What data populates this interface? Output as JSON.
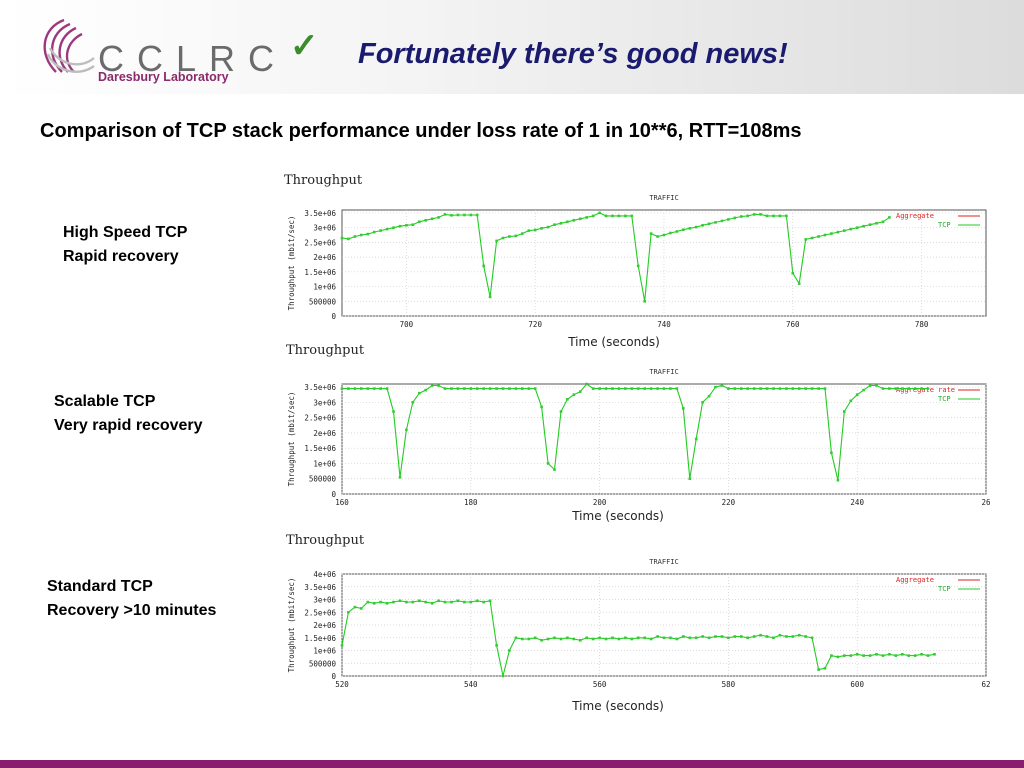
{
  "header": {
    "logo_text": "CCLRC",
    "logo_subtitle": "Daresbury Laboratory",
    "check_icon": "checkmark-icon",
    "title": "Fortunately there’s good news!"
  },
  "subtitle": "Comparison of TCP stack performance under loss rate of 1 in 10**6, RTT=108ms",
  "colors": {
    "series": "#22cc22",
    "aggregate": "#dd2222",
    "footer": "#8a1e6e",
    "title": "#1a1a6e"
  },
  "chart_data": [
    {
      "type": "line",
      "side_label": [
        "High Speed TCP",
        "Rapid recovery"
      ],
      "heading": "Throughput",
      "title": "TRAFFIC",
      "xlabel": "Time (seconds)",
      "ylabel": "Throughput (mbit/sec)",
      "xlim": [
        690,
        790
      ],
      "ylim": [
        0,
        3600000
      ],
      "xticks": [
        "700",
        "720",
        "740",
        "760",
        "780"
      ],
      "yticks": [
        "0",
        "500000",
        "1e+06",
        "1.5e+06",
        "2e+06",
        "2.5e+06",
        "3e+06",
        "3.5e+06"
      ],
      "legend": [
        "Aggregate",
        "TCP"
      ],
      "series": [
        {
          "name": "TCP",
          "x": [
            690,
            691,
            692,
            693,
            694,
            695,
            696,
            697,
            698,
            699,
            700,
            701,
            702,
            703,
            704,
            705,
            706,
            707,
            708,
            709,
            710,
            711,
            712,
            713,
            714,
            715,
            716,
            717,
            718,
            719,
            720,
            721,
            722,
            723,
            724,
            725,
            726,
            727,
            728,
            729,
            730,
            731,
            732,
            733,
            734,
            735,
            736,
            737,
            738,
            739,
            740,
            741,
            742,
            743,
            744,
            745,
            746,
            747,
            748,
            749,
            750,
            751,
            752,
            753,
            754,
            755,
            756,
            757,
            758,
            759,
            760,
            761,
            762,
            763,
            764,
            765,
            766,
            767,
            768,
            769,
            770,
            771,
            772,
            773,
            774,
            775
          ],
          "y": [
            2650000,
            2620000,
            2700000,
            2750000,
            2780000,
            2850000,
            2900000,
            2950000,
            3000000,
            3050000,
            3080000,
            3100000,
            3200000,
            3250000,
            3300000,
            3350000,
            3450000,
            3420000,
            3430000,
            3430000,
            3430000,
            3430000,
            1700000,
            650000,
            2550000,
            2650000,
            2700000,
            2720000,
            2800000,
            2900000,
            2920000,
            2980000,
            3020000,
            3100000,
            3150000,
            3200000,
            3250000,
            3300000,
            3350000,
            3400000,
            3500000,
            3400000,
            3400000,
            3400000,
            3400000,
            3400000,
            1700000,
            500000,
            2800000,
            2700000,
            2750000,
            2820000,
            2870000,
            2930000,
            2980000,
            3020000,
            3080000,
            3130000,
            3180000,
            3230000,
            3280000,
            3330000,
            3380000,
            3400000,
            3450000,
            3450000,
            3400000,
            3400000,
            3400000,
            3400000,
            1450000,
            1100000,
            2600000,
            2650000,
            2700000,
            2750000,
            2800000,
            2850000,
            2900000,
            2950000,
            3000000,
            3050000,
            3100000,
            3150000,
            3200000,
            3350000
          ]
        }
      ]
    },
    {
      "type": "line",
      "side_label": [
        "Scalable TCP",
        "Very rapid recovery"
      ],
      "heading": "Throughput",
      "title": "TRAFFIC",
      "xlabel": "Time (seconds)",
      "ylabel": "Throughput (mbit/sec)",
      "xlim": [
        160,
        260
      ],
      "ylim": [
        0,
        3600000
      ],
      "xticks": [
        "160",
        "180",
        "200",
        "220",
        "240",
        "26"
      ],
      "yticks": [
        "0",
        "500000",
        "1e+06",
        "1.5e+06",
        "2e+06",
        "2.5e+06",
        "3e+06",
        "3.5e+06"
      ],
      "legend": [
        "Aggregate rate",
        "TCP"
      ],
      "series": [
        {
          "name": "TCP",
          "x": [
            160,
            161,
            162,
            163,
            164,
            165,
            166,
            167,
            168,
            169,
            170,
            171,
            172,
            173,
            174,
            175,
            176,
            177,
            178,
            179,
            180,
            181,
            182,
            183,
            184,
            185,
            186,
            187,
            188,
            189,
            190,
            191,
            192,
            193,
            194,
            195,
            196,
            197,
            198,
            199,
            200,
            201,
            202,
            203,
            204,
            205,
            206,
            207,
            208,
            209,
            210,
            211,
            212,
            213,
            214,
            215,
            216,
            217,
            218,
            219,
            220,
            221,
            222,
            223,
            224,
            225,
            226,
            227,
            228,
            229,
            230,
            231,
            232,
            233,
            234,
            235,
            236,
            237,
            238,
            239,
            240,
            241,
            242,
            243,
            244,
            245,
            246,
            247,
            248,
            249,
            250,
            251
          ],
          "y": [
            3450000,
            3450000,
            3450000,
            3450000,
            3450000,
            3450000,
            3450000,
            3450000,
            2700000,
            550000,
            2100000,
            3000000,
            3300000,
            3400000,
            3550000,
            3550000,
            3450000,
            3450000,
            3450000,
            3450000,
            3450000,
            3450000,
            3450000,
            3450000,
            3450000,
            3450000,
            3450000,
            3450000,
            3450000,
            3450000,
            3450000,
            2850000,
            1000000,
            800000,
            2700000,
            3100000,
            3250000,
            3350000,
            3600000,
            3450000,
            3450000,
            3450000,
            3450000,
            3450000,
            3450000,
            3450000,
            3450000,
            3450000,
            3450000,
            3450000,
            3450000,
            3450000,
            3450000,
            2800000,
            500000,
            1800000,
            3000000,
            3200000,
            3500000,
            3550000,
            3450000,
            3450000,
            3450000,
            3450000,
            3450000,
            3450000,
            3450000,
            3450000,
            3450000,
            3450000,
            3450000,
            3450000,
            3450000,
            3450000,
            3450000,
            3450000,
            1350000,
            450000,
            2700000,
            3050000,
            3250000,
            3400000,
            3550000,
            3550000,
            3450000,
            3450000,
            3450000,
            3450000,
            3450000,
            3450000,
            3450000,
            3450000
          ]
        }
      ]
    },
    {
      "type": "line",
      "side_label": [
        "Standard TCP",
        "Recovery >10 minutes"
      ],
      "heading": "Throughput",
      "title": "TRAFFIC",
      "xlabel": "Time (seconds)",
      "ylabel": "Throughput (mbit/sec)",
      "xlim": [
        520,
        620
      ],
      "ylim": [
        0,
        4000000
      ],
      "xticks": [
        "520",
        "540",
        "560",
        "580",
        "600",
        "62"
      ],
      "yticks": [
        "0",
        "500000",
        "1e+06",
        "1.5e+06",
        "2e+06",
        "2.5e+06",
        "3e+06",
        "3.5e+06",
        "4e+06"
      ],
      "legend": [
        "Aggregate",
        "TCP"
      ],
      "series": [
        {
          "name": "TCP",
          "x": [
            520,
            521,
            522,
            523,
            524,
            525,
            526,
            527,
            528,
            529,
            530,
            531,
            532,
            533,
            534,
            535,
            536,
            537,
            538,
            539,
            540,
            541,
            542,
            543,
            544,
            545,
            546,
            547,
            548,
            549,
            550,
            551,
            552,
            553,
            554,
            555,
            556,
            557,
            558,
            559,
            560,
            561,
            562,
            563,
            564,
            565,
            566,
            567,
            568,
            569,
            570,
            571,
            572,
            573,
            574,
            575,
            576,
            577,
            578,
            579,
            580,
            581,
            582,
            583,
            584,
            585,
            586,
            587,
            588,
            589,
            590,
            591,
            592,
            593,
            594,
            595,
            596,
            597,
            598,
            599,
            600,
            601,
            602,
            603,
            604,
            605,
            606,
            607,
            608,
            609,
            610,
            611,
            612
          ],
          "y": [
            1200000,
            2500000,
            2700000,
            2650000,
            2900000,
            2850000,
            2900000,
            2850000,
            2900000,
            2950000,
            2900000,
            2900000,
            2950000,
            2900000,
            2850000,
            2950000,
            2900000,
            2900000,
            2950000,
            2900000,
            2900000,
            2950000,
            2900000,
            2950000,
            1200000,
            0,
            1000000,
            1500000,
            1450000,
            1450000,
            1500000,
            1400000,
            1450000,
            1500000,
            1450000,
            1500000,
            1450000,
            1400000,
            1500000,
            1450000,
            1500000,
            1450000,
            1500000,
            1450000,
            1500000,
            1450000,
            1500000,
            1500000,
            1450000,
            1550000,
            1500000,
            1500000,
            1450000,
            1550000,
            1500000,
            1500000,
            1550000,
            1500000,
            1550000,
            1550000,
            1500000,
            1550000,
            1550000,
            1500000,
            1550000,
            1600000,
            1550000,
            1500000,
            1600000,
            1550000,
            1550000,
            1600000,
            1550000,
            1500000,
            250000,
            300000,
            800000,
            750000,
            800000,
            800000,
            850000,
            800000,
            800000,
            850000,
            800000,
            850000,
            800000,
            850000,
            800000,
            800000,
            850000,
            800000,
            850000
          ]
        }
      ]
    }
  ]
}
